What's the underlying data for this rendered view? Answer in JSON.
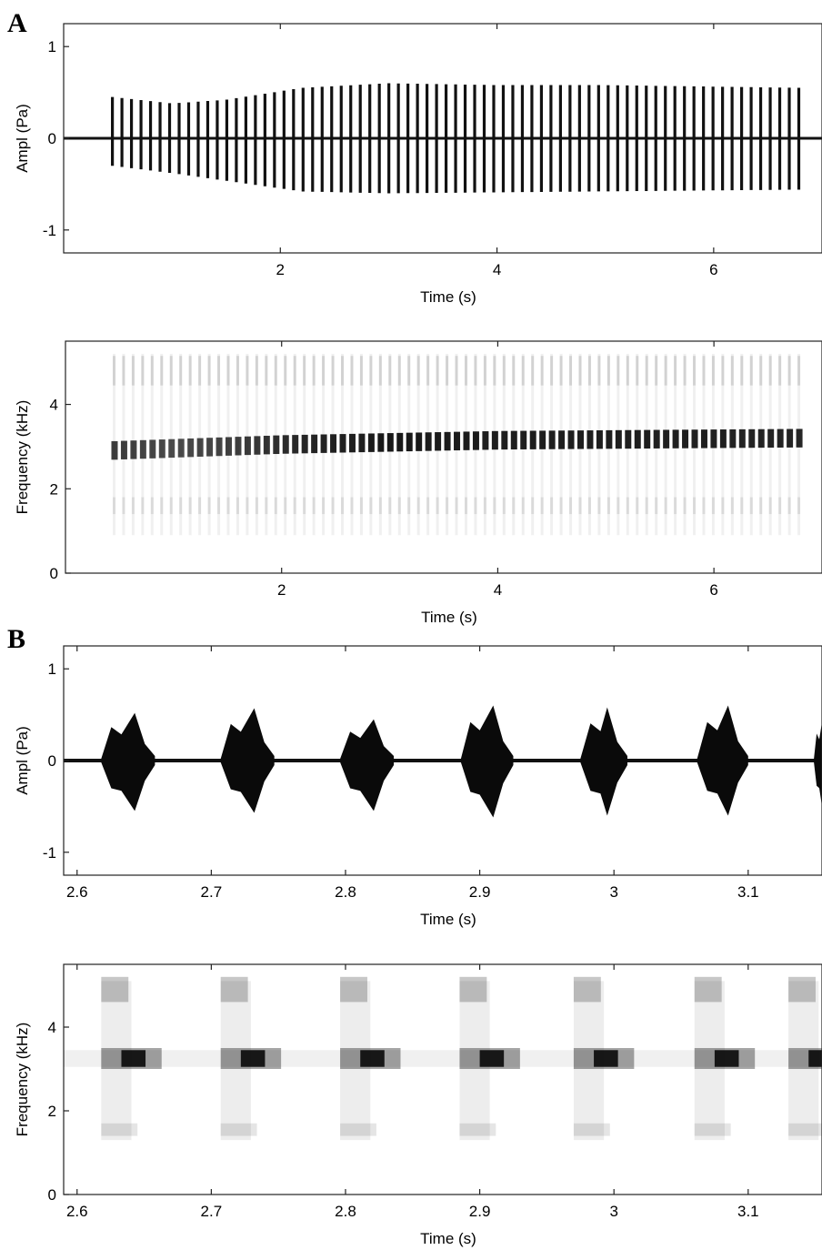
{
  "panels": {
    "a_label": "A",
    "b_label": "B"
  },
  "chart_data": [
    {
      "type": "line",
      "panel": "A",
      "subtype": "waveform",
      "xlabel": "Time (s)",
      "ylabel": "Ampl (Pa)",
      "xlim": [
        0.0,
        7.0
      ],
      "ylim": [
        -1.25,
        1.25
      ],
      "xticks": [
        2,
        4,
        6
      ],
      "xtick_labels": [
        "2",
        "4",
        "6"
      ],
      "yticks": [
        1,
        0,
        -1
      ],
      "ytick_labels": [
        "1",
        "0",
        "-1"
      ],
      "pulse_train": {
        "start_s": 0.45,
        "end_s": 6.8,
        "period_s": 0.088,
        "peak_amplitude_pa": [
          [
            0.45,
            0.45
          ],
          [
            1.0,
            0.38
          ],
          [
            1.5,
            0.42
          ],
          [
            2.2,
            0.55
          ],
          [
            3.0,
            0.6
          ],
          [
            4.0,
            0.58
          ],
          [
            5.0,
            0.58
          ],
          [
            6.8,
            0.55
          ]
        ],
        "trough_amplitude_pa": [
          [
            0.45,
            -0.3
          ],
          [
            1.0,
            -0.38
          ],
          [
            2.2,
            -0.58
          ],
          [
            3.0,
            -0.6
          ],
          [
            6.8,
            -0.56
          ]
        ]
      },
      "grid": false
    },
    {
      "type": "heatmap",
      "panel": "A",
      "subtype": "spectrogram",
      "xlabel": "Time (s)",
      "ylabel": "Frequency (kHz)",
      "xlim": [
        0.0,
        7.0
      ],
      "ylim": [
        0.0,
        5.5
      ],
      "xticks": [
        2,
        4,
        6
      ],
      "xtick_labels": [
        "2",
        "4",
        "6"
      ],
      "yticks": [
        4,
        2,
        0
      ],
      "ytick_labels": [
        "4",
        "2",
        "0"
      ],
      "dominant_band_khz": [
        [
          0.35,
          2.9
        ],
        [
          2.0,
          3.05
        ],
        [
          4.0,
          3.15
        ],
        [
          6.8,
          3.2
        ]
      ],
      "band_halfwidth_khz": 0.22,
      "harmonic_band_khz": 4.8,
      "lower_band_khz": 1.6,
      "colormap": "gray_reversed"
    },
    {
      "type": "line",
      "panel": "B",
      "subtype": "waveform",
      "xlabel": "Time (s)",
      "ylabel": "Ampl (Pa)",
      "xlim": [
        2.59,
        3.155
      ],
      "ylim": [
        -1.25,
        1.25
      ],
      "xticks": [
        2.6,
        2.7,
        2.8,
        2.9,
        3.0,
        3.1
      ],
      "xtick_labels": [
        "2.6",
        "2.7",
        "2.8",
        "2.9",
        "3",
        "3.1"
      ],
      "yticks": [
        1,
        0,
        -1
      ],
      "ytick_labels": [
        "1",
        "0",
        "-1"
      ],
      "pulses": [
        {
          "start": 2.618,
          "mid": 2.633,
          "peak": 2.643,
          "end": 2.658,
          "max_pa": 0.52,
          "min_pa": -0.55
        },
        {
          "start": 2.707,
          "mid": 2.722,
          "peak": 2.732,
          "end": 2.747,
          "max_pa": 0.57,
          "min_pa": -0.57
        },
        {
          "start": 2.796,
          "mid": 2.811,
          "peak": 2.821,
          "end": 2.836,
          "max_pa": 0.45,
          "min_pa": -0.55
        },
        {
          "start": 2.886,
          "mid": 2.9,
          "peak": 2.91,
          "end": 2.925,
          "max_pa": 0.6,
          "min_pa": -0.62
        },
        {
          "start": 2.975,
          "mid": 2.99,
          "peak": 2.995,
          "end": 3.01,
          "max_pa": 0.58,
          "min_pa": -0.6
        },
        {
          "start": 3.062,
          "mid": 3.077,
          "peak": 3.085,
          "end": 3.1,
          "max_pa": 0.6,
          "min_pa": -0.6
        },
        {
          "start": 3.149,
          "mid": 3.153,
          "peak": 3.155,
          "end": 3.155,
          "max_pa": 0.42,
          "min_pa": -0.5
        }
      ],
      "grid": false
    },
    {
      "type": "heatmap",
      "panel": "B",
      "subtype": "spectrogram",
      "xlabel": "Time (s)",
      "ylabel": "Frequency (kHz)",
      "xlim": [
        2.59,
        3.155
      ],
      "ylim": [
        0.0,
        5.5
      ],
      "xticks": [
        2.6,
        2.7,
        2.8,
        2.9,
        3.0,
        3.1
      ],
      "xtick_labels": [
        "2.6",
        "2.7",
        "2.8",
        "2.9",
        "3",
        "3.1"
      ],
      "yticks": [
        4,
        2,
        0
      ],
      "ytick_labels": [
        "4",
        "2",
        "0"
      ],
      "dominant_band_khz": 3.25,
      "band_halfwidth_khz": 0.25,
      "harmonic_band_khz": 4.9,
      "lower_band_khz": 1.55,
      "pulse_peaks_s": [
        2.643,
        2.732,
        2.821,
        2.91,
        2.995,
        3.085,
        3.155
      ],
      "colormap": "gray_reversed"
    }
  ]
}
